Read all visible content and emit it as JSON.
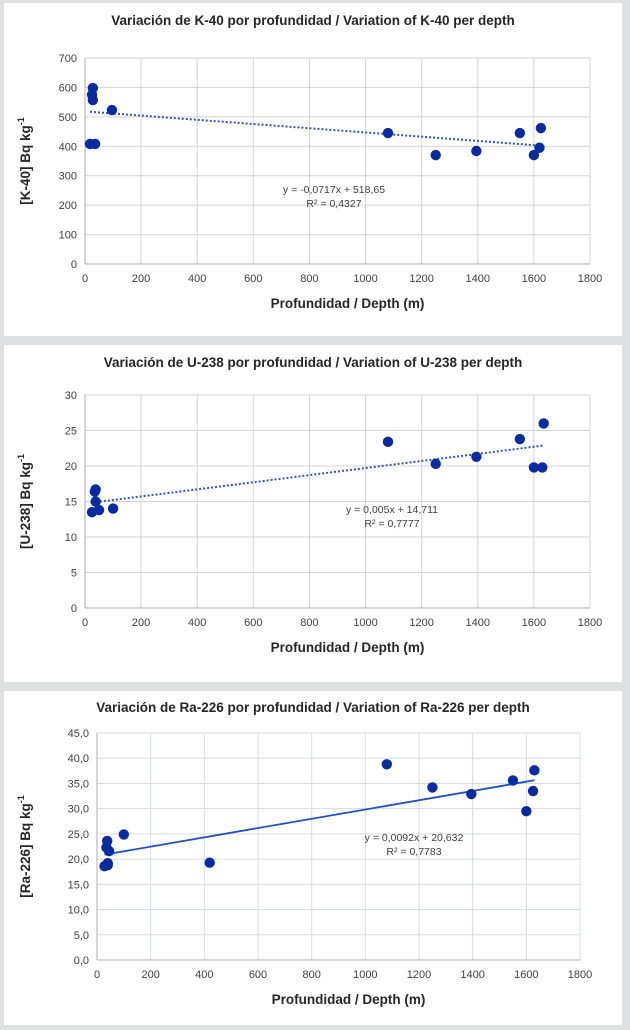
{
  "chart_data": [
    {
      "type": "scatter",
      "title": "Variación de K-40 por profundidad / Variation of K-40 per depth",
      "xlabel": "Profundidad / Depth (m)",
      "ylabel": "[K-40] Bq kg",
      "ylabel_sup": "-1",
      "xlim": [
        0,
        1800
      ],
      "ylim": [
        0,
        700
      ],
      "xticks": [
        0,
        200,
        400,
        600,
        800,
        1000,
        1200,
        1400,
        1600,
        1800
      ],
      "yticks": [
        0,
        100,
        200,
        300,
        400,
        500,
        600,
        700
      ],
      "ytick_labels": [
        "0",
        "100",
        "200",
        "300",
        "400",
        "500",
        "600",
        "700"
      ],
      "grid": true,
      "x": [
        28,
        25,
        28,
        96,
        18,
        36,
        1080,
        1250,
        1395,
        1550,
        1600,
        1625,
        1620
      ],
      "y": [
        598,
        575,
        557,
        523,
        408,
        408,
        445,
        370,
        384,
        445,
        370,
        462,
        395
      ],
      "trendline": {
        "slope": -0.0717,
        "intercept": 518.65,
        "x_range": [
          18,
          1625
        ],
        "style": "dotted"
      },
      "equation": "y = -0,0717x + 518,65",
      "r2": "R² = 0,4327",
      "marker_color": "#0a2aa0",
      "line_color": "#2f56c4"
    },
    {
      "type": "scatter",
      "title": "Variación de U-238 por profundidad / Variation of U-238 per depth",
      "xlabel": "Profundidad / Depth (m)",
      "ylabel": "[U-238] Bq kg",
      "ylabel_sup": "-1",
      "xlim": [
        0,
        1800
      ],
      "ylim": [
        0,
        30
      ],
      "xticks": [
        0,
        200,
        400,
        600,
        800,
        1000,
        1200,
        1400,
        1600,
        1800
      ],
      "yticks": [
        0,
        5,
        10,
        15,
        20,
        25,
        30
      ],
      "ytick_labels": [
        "0",
        "5",
        "10",
        "15",
        "20",
        "25",
        "30"
      ],
      "grid": true,
      "x": [
        35,
        38,
        25,
        38,
        50,
        100,
        1080,
        1250,
        1395,
        1550,
        1600,
        1630,
        1635
      ],
      "y": [
        16.4,
        16.7,
        13.5,
        15.0,
        13.8,
        14.0,
        23.4,
        20.3,
        21.3,
        23.8,
        19.8,
        19.8,
        26.0
      ],
      "trendline": {
        "slope": 0.005,
        "intercept": 14.711,
        "x_range": [
          25,
          1635
        ],
        "style": "dotted"
      },
      "equation": "y = 0,005x + 14,711",
      "r2": "R² = 0,7777",
      "marker_color": "#0a2aa0",
      "line_color": "#2f56c4"
    },
    {
      "type": "scatter",
      "title": "Variación de Ra-226 por profundidad / Variation of Ra-226 per depth",
      "xlabel": "Profundidad / Depth (m)",
      "ylabel": "[Ra-226] Bq kg",
      "ylabel_sup": "-1",
      "xlim": [
        0,
        1800
      ],
      "ylim": [
        0,
        45
      ],
      "xticks": [
        0,
        200,
        400,
        600,
        800,
        1000,
        1200,
        1400,
        1600,
        1800
      ],
      "yticks": [
        0,
        5,
        10,
        15,
        20,
        25,
        30,
        35,
        40,
        45
      ],
      "ytick_labels": [
        "0,0",
        "5,0",
        "10,0",
        "15,0",
        "20,0",
        "25,0",
        "30,0",
        "35,0",
        "40,0",
        "45,0"
      ],
      "grid": true,
      "x": [
        28,
        40,
        38,
        45,
        35,
        40,
        100,
        420,
        1080,
        1250,
        1395,
        1550,
        1600,
        1625,
        1630
      ],
      "y": [
        18.6,
        19.2,
        23.6,
        21.6,
        22.3,
        18.8,
        24.9,
        19.3,
        38.8,
        34.2,
        32.9,
        35.6,
        29.5,
        33.5,
        37.6
      ],
      "trendline": {
        "slope": 0.0092,
        "intercept": 20.632,
        "x_range": [
          28,
          1630
        ],
        "style": "solid"
      },
      "equation": "y = 0,0092x + 20,632",
      "r2": "R² = 0,7783",
      "marker_color": "#0a2aa0",
      "line_color": "#1f4fc0"
    }
  ]
}
